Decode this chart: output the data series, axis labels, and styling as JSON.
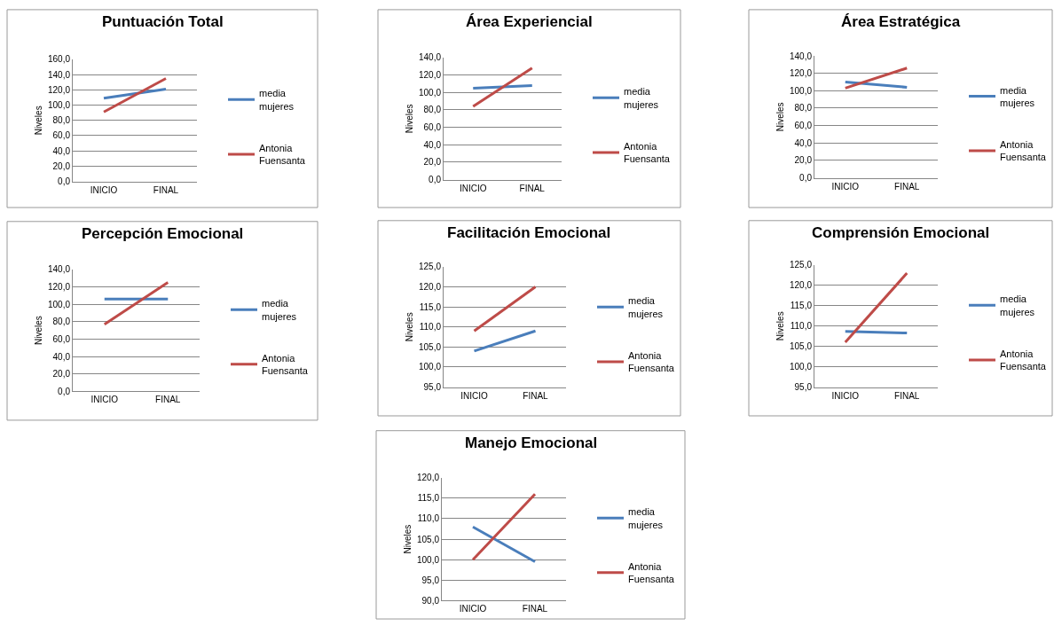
{
  "chart_data": [
    {
      "type": "line",
      "title": "Puntuación Total",
      "ylabel": "Niveles",
      "categories": [
        "INICIO",
        "FINAL"
      ],
      "legend": "right",
      "grid": "y",
      "ylim": [
        0,
        160
      ],
      "yticks": [
        {
          "value": 0,
          "label": "0,0"
        },
        {
          "value": 20,
          "label": "20,0"
        },
        {
          "value": 40,
          "label": "40,0"
        },
        {
          "value": 60,
          "label": "60,0"
        },
        {
          "value": 80,
          "label": "80,0"
        },
        {
          "value": 100,
          "label": "100,0"
        },
        {
          "value": 120,
          "label": "120,0"
        },
        {
          "value": 140,
          "label": "140,0"
        },
        {
          "value": 160,
          "label": "160,0"
        }
      ],
      "series": [
        {
          "name": "media mujeres",
          "color": "#4a7ebb",
          "values": [
            109,
            121
          ]
        },
        {
          "name": "Antonia Fuensanta",
          "color": "#be4b48",
          "values": [
            91,
            135
          ]
        }
      ]
    },
    {
      "type": "line",
      "title": "Área Experiencial",
      "ylabel": "Niveles",
      "categories": [
        "INICIO",
        "FINAL"
      ],
      "legend": "right",
      "grid": "y",
      "ylim": [
        0,
        140
      ],
      "yticks": [
        {
          "value": 0,
          "label": "0,0"
        },
        {
          "value": 20,
          "label": "20,0"
        },
        {
          "value": 40,
          "label": "40,0"
        },
        {
          "value": 60,
          "label": "60,0"
        },
        {
          "value": 80,
          "label": "80,0"
        },
        {
          "value": 100,
          "label": "100,0"
        },
        {
          "value": 120,
          "label": "120,0"
        },
        {
          "value": 140,
          "label": "140,0"
        }
      ],
      "series": [
        {
          "name": "media mujeres",
          "color": "#4a7ebb",
          "values": [
            105,
            108
          ]
        },
        {
          "name": "Antonia Fuensanta",
          "color": "#be4b48",
          "values": [
            84,
            128
          ]
        }
      ]
    },
    {
      "type": "line",
      "title": "Área Estratégica",
      "ylabel": "Niveles",
      "categories": [
        "INICIO",
        "FINAL"
      ],
      "legend": "right",
      "grid": "y",
      "ylim": [
        0,
        140
      ],
      "yticks": [
        {
          "value": 0,
          "label": "0,0"
        },
        {
          "value": 20,
          "label": "20,0"
        },
        {
          "value": 40,
          "label": "40,0"
        },
        {
          "value": 60,
          "label": "60,0"
        },
        {
          "value": 80,
          "label": "80,0"
        },
        {
          "value": 100,
          "label": "100,0"
        },
        {
          "value": 120,
          "label": "120,0"
        },
        {
          "value": 140,
          "label": "140,0"
        }
      ],
      "series": [
        {
          "name": "media mujeres",
          "color": "#4a7ebb",
          "values": [
            110,
            104
          ]
        },
        {
          "name": "Antonia Fuensanta",
          "color": "#be4b48",
          "values": [
            103,
            126
          ]
        }
      ]
    },
    {
      "type": "line",
      "title": "Percepción Emocional",
      "ylabel": "Niveles",
      "categories": [
        "INICIO",
        "FINAL"
      ],
      "legend": "right",
      "grid": "y",
      "ylim": [
        0,
        140
      ],
      "yticks": [
        {
          "value": 0,
          "label": "0,0"
        },
        {
          "value": 20,
          "label": "20,0"
        },
        {
          "value": 40,
          "label": "40,0"
        },
        {
          "value": 60,
          "label": "60,0"
        },
        {
          "value": 80,
          "label": "80,0"
        },
        {
          "value": 100,
          "label": "100,0"
        },
        {
          "value": 120,
          "label": "120,0"
        },
        {
          "value": 140,
          "label": "140,0"
        }
      ],
      "series": [
        {
          "name": "media mujeres",
          "color": "#4a7ebb",
          "values": [
            106,
            106
          ]
        },
        {
          "name": "Antonia Fuensanta",
          "color": "#be4b48",
          "values": [
            77,
            125
          ]
        }
      ]
    },
    {
      "type": "line",
      "title": "Facilitación Emocional",
      "ylabel": "Niveles",
      "categories": [
        "INICIO",
        "FINAL"
      ],
      "legend": "right",
      "grid": "y",
      "ylim": [
        95,
        125
      ],
      "yticks": [
        {
          "value": 95,
          "label": "95,0"
        },
        {
          "value": 100,
          "label": "100,0"
        },
        {
          "value": 105,
          "label": "105,0"
        },
        {
          "value": 110,
          "label": "110,0"
        },
        {
          "value": 115,
          "label": "115,0"
        },
        {
          "value": 120,
          "label": "120,0"
        },
        {
          "value": 125,
          "label": "125,0"
        }
      ],
      "series": [
        {
          "name": "media mujeres",
          "color": "#4a7ebb",
          "values": [
            104,
            109
          ]
        },
        {
          "name": "Antonia Fuensanta",
          "color": "#be4b48",
          "values": [
            109,
            120
          ]
        }
      ]
    },
    {
      "type": "line",
      "title": "Comprensión Emocional",
      "ylabel": "Niveles",
      "categories": [
        "INICIO",
        "FINAL"
      ],
      "legend": "right",
      "grid": "y",
      "ylim": [
        95,
        125
      ],
      "yticks": [
        {
          "value": 95,
          "label": "95,0"
        },
        {
          "value": 100,
          "label": "100,0"
        },
        {
          "value": 105,
          "label": "105,0"
        },
        {
          "value": 110,
          "label": "110,0"
        },
        {
          "value": 115,
          "label": "115,0"
        },
        {
          "value": 120,
          "label": "120,0"
        },
        {
          "value": 125,
          "label": "125,0"
        }
      ],
      "series": [
        {
          "name": "media mujeres",
          "color": "#4a7ebb",
          "values": [
            108.7,
            108.3
          ]
        },
        {
          "name": "Antonia Fuensanta",
          "color": "#be4b48",
          "values": [
            106,
            123
          ]
        }
      ]
    },
    {
      "type": "line",
      "title": "Manejo Emocional",
      "ylabel": "Niveles",
      "categories": [
        "INICIO",
        "FINAL"
      ],
      "legend": "right",
      "grid": "y",
      "ylim": [
        90,
        120
      ],
      "yticks": [
        {
          "value": 90,
          "label": "90,0"
        },
        {
          "value": 95,
          "label": "95,0"
        },
        {
          "value": 100,
          "label": "100,0"
        },
        {
          "value": 105,
          "label": "105,0"
        },
        {
          "value": 110,
          "label": "110,0"
        },
        {
          "value": 115,
          "label": "115,0"
        },
        {
          "value": 120,
          "label": "120,0"
        }
      ],
      "series": [
        {
          "name": "media mujeres",
          "color": "#4a7ebb",
          "values": [
            108,
            99.5
          ]
        },
        {
          "name": "Antonia Fuensanta",
          "color": "#be4b48",
          "values": [
            100,
            116
          ]
        }
      ]
    }
  ]
}
